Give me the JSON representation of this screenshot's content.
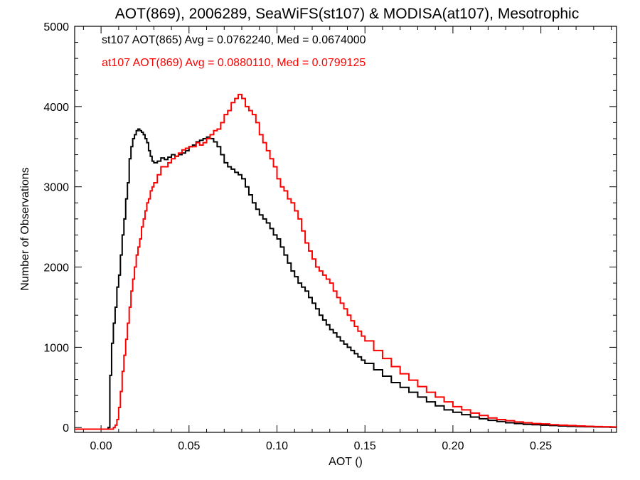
{
  "chart_data": {
    "type": "line",
    "style": "step-histogram",
    "title": "AOT(869), 2006289, SeaWiFS(st107) & MODISA(at107), Mesotrophic",
    "xlabel": "AOT ()",
    "ylabel": "Number of Observations",
    "xlim": [
      -0.015,
      0.293
    ],
    "ylim": [
      -60,
      5000
    ],
    "xticks": [
      0.0,
      0.05,
      0.1,
      0.15,
      0.2,
      0.25
    ],
    "xtick_labels": [
      "0.00",
      "0.05",
      "0.10",
      "0.15",
      "0.20",
      "0.25"
    ],
    "yticks": [
      0,
      1000,
      2000,
      3000,
      4000,
      5000
    ],
    "ytick_labels": [
      "0",
      "1000",
      "2000",
      "3000",
      "4000",
      "5000"
    ],
    "grid": false,
    "legend_position": "top-left",
    "series": [
      {
        "name": "st107",
        "color": "#000000",
        "legend_text": "st107 AOT(865) Avg = 0.0762240, Med = 0.0674000",
        "x": [
          -0.015,
          0.004,
          0.005,
          0.006,
          0.007,
          0.008,
          0.009,
          0.01,
          0.011,
          0.012,
          0.013,
          0.014,
          0.015,
          0.016,
          0.017,
          0.018,
          0.019,
          0.02,
          0.021,
          0.022,
          0.023,
          0.024,
          0.025,
          0.026,
          0.027,
          0.028,
          0.029,
          0.03,
          0.032,
          0.034,
          0.036,
          0.038,
          0.04,
          0.042,
          0.044,
          0.046,
          0.048,
          0.05,
          0.052,
          0.054,
          0.056,
          0.058,
          0.06,
          0.062,
          0.064,
          0.066,
          0.068,
          0.07,
          0.072,
          0.074,
          0.076,
          0.078,
          0.08,
          0.082,
          0.084,
          0.086,
          0.088,
          0.09,
          0.092,
          0.094,
          0.096,
          0.098,
          0.1,
          0.102,
          0.104,
          0.106,
          0.108,
          0.11,
          0.112,
          0.114,
          0.116,
          0.118,
          0.12,
          0.122,
          0.124,
          0.126,
          0.128,
          0.13,
          0.132,
          0.134,
          0.136,
          0.138,
          0.14,
          0.142,
          0.144,
          0.146,
          0.148,
          0.15,
          0.155,
          0.16,
          0.165,
          0.17,
          0.175,
          0.18,
          0.185,
          0.19,
          0.195,
          0.2,
          0.205,
          0.21,
          0.215,
          0.22,
          0.225,
          0.23,
          0.235,
          0.24,
          0.245,
          0.25,
          0.255,
          0.26,
          0.265,
          0.27,
          0.275,
          0.28,
          0.285,
          0.29,
          0.293
        ],
        "values": [
          -20,
          0,
          650,
          1050,
          1300,
          1500,
          1750,
          1900,
          2150,
          2400,
          2600,
          2850,
          3050,
          3350,
          3500,
          3600,
          3650,
          3700,
          3720,
          3700,
          3680,
          3650,
          3600,
          3550,
          3450,
          3380,
          3320,
          3300,
          3320,
          3360,
          3340,
          3370,
          3400,
          3380,
          3400,
          3420,
          3450,
          3500,
          3520,
          3560,
          3580,
          3600,
          3620,
          3600,
          3560,
          3500,
          3400,
          3300,
          3250,
          3220,
          3180,
          3150,
          3100,
          3000,
          2900,
          2800,
          2720,
          2650,
          2600,
          2550,
          2480,
          2400,
          2350,
          2250,
          2150,
          2050,
          1950,
          1880,
          1800,
          1750,
          1700,
          1620,
          1550,
          1480,
          1400,
          1340,
          1280,
          1220,
          1180,
          1130,
          1080,
          1040,
          1000,
          960,
          920,
          880,
          840,
          800,
          720,
          640,
          560,
          500,
          440,
          380,
          320,
          270,
          220,
          190,
          160,
          130,
          110,
          90,
          75,
          60,
          50,
          40,
          35,
          30,
          25,
          20,
          15,
          12,
          10,
          8,
          6,
          5,
          5
        ]
      },
      {
        "name": "at107",
        "color": "#ff0000",
        "legend_text": "at107 AOT(869) Avg = 0.0880110, Med = 0.0799125",
        "x": [
          -0.015,
          0.007,
          0.008,
          0.009,
          0.01,
          0.011,
          0.012,
          0.013,
          0.014,
          0.015,
          0.016,
          0.017,
          0.018,
          0.019,
          0.02,
          0.021,
          0.022,
          0.023,
          0.024,
          0.025,
          0.026,
          0.027,
          0.028,
          0.029,
          0.03,
          0.032,
          0.034,
          0.036,
          0.038,
          0.04,
          0.042,
          0.044,
          0.046,
          0.048,
          0.05,
          0.052,
          0.054,
          0.056,
          0.058,
          0.06,
          0.062,
          0.064,
          0.066,
          0.068,
          0.07,
          0.072,
          0.074,
          0.076,
          0.078,
          0.08,
          0.082,
          0.084,
          0.086,
          0.088,
          0.09,
          0.092,
          0.094,
          0.096,
          0.098,
          0.1,
          0.102,
          0.104,
          0.106,
          0.108,
          0.11,
          0.112,
          0.114,
          0.116,
          0.118,
          0.12,
          0.122,
          0.124,
          0.126,
          0.128,
          0.13,
          0.132,
          0.134,
          0.136,
          0.138,
          0.14,
          0.142,
          0.144,
          0.146,
          0.148,
          0.15,
          0.155,
          0.16,
          0.165,
          0.17,
          0.175,
          0.18,
          0.185,
          0.19,
          0.195,
          0.2,
          0.205,
          0.21,
          0.215,
          0.22,
          0.225,
          0.23,
          0.235,
          0.24,
          0.245,
          0.25,
          0.255,
          0.26,
          0.265,
          0.27,
          0.275,
          0.28,
          0.285,
          0.29,
          0.293
        ],
        "values": [
          -20,
          0,
          30,
          100,
          250,
          450,
          700,
          900,
          1100,
          1300,
          1500,
          1700,
          1850,
          2000,
          2150,
          2250,
          2350,
          2500,
          2600,
          2700,
          2800,
          2850,
          2950,
          3000,
          3050,
          3150,
          3250,
          3250,
          3300,
          3350,
          3380,
          3420,
          3460,
          3480,
          3500,
          3500,
          3550,
          3520,
          3550,
          3600,
          3650,
          3700,
          3720,
          3800,
          3900,
          3950,
          4050,
          4100,
          4150,
          4100,
          4000,
          3950,
          3900,
          3800,
          3650,
          3550,
          3450,
          3350,
          3250,
          3100,
          3000,
          2950,
          2850,
          2800,
          2700,
          2600,
          2450,
          2300,
          2200,
          2100,
          2000,
          1950,
          1900,
          1850,
          1800,
          1700,
          1620,
          1550,
          1480,
          1400,
          1330,
          1260,
          1200,
          1140,
          1080,
          960,
          860,
          760,
          670,
          590,
          510,
          440,
          380,
          320,
          260,
          220,
          180,
          150,
          120,
          100,
          85,
          70,
          60,
          50,
          45,
          35,
          30,
          25,
          20,
          15,
          12,
          10,
          8,
          6
        ]
      }
    ]
  }
}
